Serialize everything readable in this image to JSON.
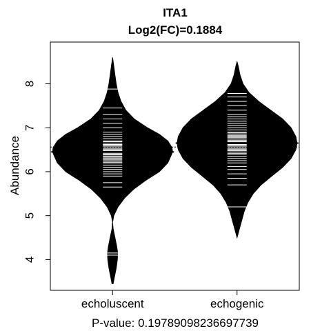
{
  "chart_data": {
    "type": "beanplot",
    "title": "ITA1",
    "subtitle": "Log2(FC)=0.1884",
    "xlabel": "P-value: 0.19789098236697739",
    "ylabel": "Abundance",
    "ylim": [
      3.3,
      8.95
    ],
    "yticks": [
      4,
      5,
      6,
      7,
      8
    ],
    "categories": [
      "echoluscent",
      "echogenic"
    ],
    "overall_mean": 6.56,
    "grid": false,
    "series": [
      {
        "group_mean": 6.45,
        "range": [
          3.45,
          8.6
        ],
        "density": [
          [
            3.45,
            0.01
          ],
          [
            3.6,
            0.03
          ],
          [
            3.8,
            0.06
          ],
          [
            4.0,
            0.08
          ],
          [
            4.15,
            0.085
          ],
          [
            4.3,
            0.07
          ],
          [
            4.5,
            0.04
          ],
          [
            4.7,
            0.01
          ],
          [
            4.85,
            0.0
          ],
          [
            5.0,
            0.02
          ],
          [
            5.2,
            0.09
          ],
          [
            5.4,
            0.2
          ],
          [
            5.6,
            0.35
          ],
          [
            5.8,
            0.55
          ],
          [
            6.0,
            0.78
          ],
          [
            6.2,
            0.92
          ],
          [
            6.35,
            0.97
          ],
          [
            6.45,
            1.0
          ],
          [
            6.55,
            0.99
          ],
          [
            6.7,
            0.92
          ],
          [
            6.85,
            0.78
          ],
          [
            7.0,
            0.58
          ],
          [
            7.2,
            0.36
          ],
          [
            7.4,
            0.22
          ],
          [
            7.6,
            0.14
          ],
          [
            7.8,
            0.09
          ],
          [
            8.0,
            0.06
          ],
          [
            8.2,
            0.04
          ],
          [
            8.4,
            0.02
          ],
          [
            8.6,
            0.0
          ]
        ],
        "points": [
          4.1,
          4.15,
          5.65,
          5.75,
          5.9,
          5.95,
          6.0,
          6.05,
          6.1,
          6.15,
          6.2,
          6.22,
          6.25,
          6.28,
          6.3,
          6.33,
          6.35,
          6.38,
          6.4,
          6.42,
          6.45,
          6.48,
          6.5,
          6.52,
          6.55,
          6.58,
          6.6,
          6.62,
          6.65,
          6.68,
          6.7,
          6.75,
          6.8,
          6.85,
          6.9,
          7.0,
          7.1,
          7.2,
          7.3,
          7.45,
          7.88
        ]
      },
      {
        "group_mean": 6.65,
        "range": [
          4.5,
          8.5
        ],
        "density": [
          [
            4.5,
            0.0
          ],
          [
            4.7,
            0.04
          ],
          [
            4.9,
            0.08
          ],
          [
            5.1,
            0.12
          ],
          [
            5.3,
            0.18
          ],
          [
            5.5,
            0.27
          ],
          [
            5.7,
            0.4
          ],
          [
            5.9,
            0.58
          ],
          [
            6.1,
            0.76
          ],
          [
            6.3,
            0.9
          ],
          [
            6.5,
            0.98
          ],
          [
            6.65,
            1.0
          ],
          [
            6.8,
            0.98
          ],
          [
            7.0,
            0.9
          ],
          [
            7.2,
            0.76
          ],
          [
            7.4,
            0.56
          ],
          [
            7.6,
            0.36
          ],
          [
            7.8,
            0.2
          ],
          [
            8.0,
            0.1
          ],
          [
            8.2,
            0.05
          ],
          [
            8.4,
            0.02
          ],
          [
            8.5,
            0.0
          ]
        ],
        "points": [
          5.2,
          5.7,
          5.85,
          5.95,
          6.05,
          6.12,
          6.2,
          6.25,
          6.3,
          6.35,
          6.4,
          6.42,
          6.45,
          6.48,
          6.5,
          6.52,
          6.55,
          6.58,
          6.6,
          6.62,
          6.65,
          6.68,
          6.7,
          6.72,
          6.75,
          6.78,
          6.8,
          6.82,
          6.85,
          6.88,
          6.9,
          6.95,
          7.0,
          7.05,
          7.1,
          7.15,
          7.2,
          7.25,
          7.3,
          7.4,
          7.5,
          7.6,
          7.7,
          7.78
        ]
      }
    ]
  }
}
